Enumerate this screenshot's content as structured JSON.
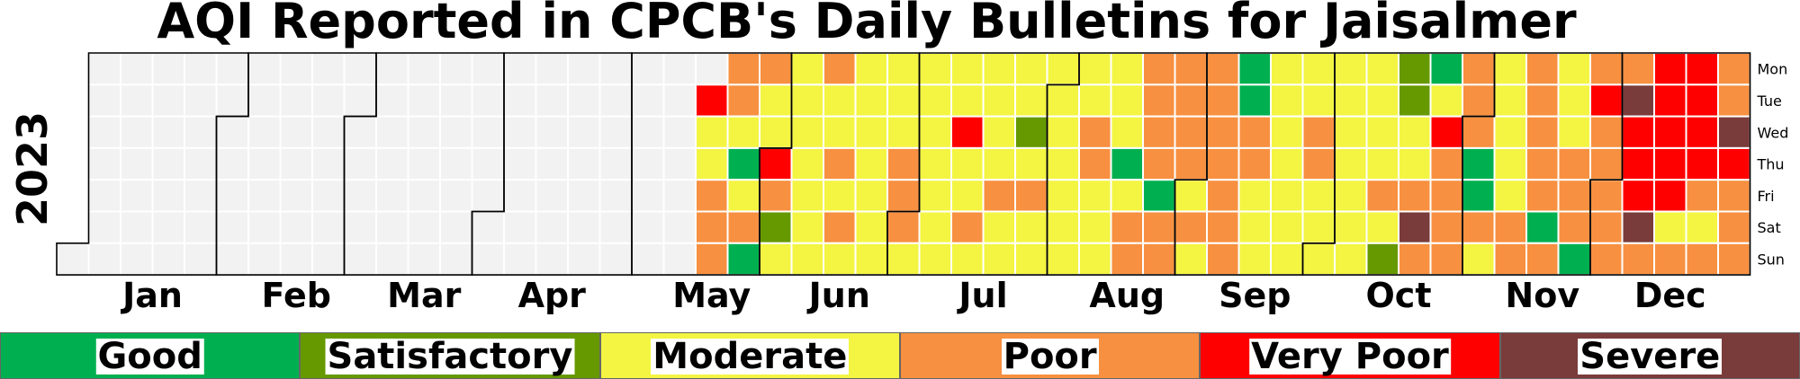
{
  "chart_data": {
    "type": "heatmap",
    "title": "AQI Reported in CPCB's Daily Bulletins for Jaisalmer",
    "year_label": "2023",
    "weekdays": [
      "Mon",
      "Tue",
      "Wed",
      "Thu",
      "Fri",
      "Sat",
      "Sun"
    ],
    "months": [
      "Jan",
      "Feb",
      "Mar",
      "Apr",
      "May",
      "Jun",
      "Jul",
      "Aug",
      "Sep",
      "Oct",
      "Nov",
      "Dec"
    ],
    "no_data_color": "#f2f2f2",
    "categories": [
      {
        "code": "G",
        "name": "Good",
        "color": "#00b050"
      },
      {
        "code": "S",
        "name": "Satisfactory",
        "color": "#669900"
      },
      {
        "code": "M",
        "name": "Moderate",
        "color": "#f3f542"
      },
      {
        "code": "P",
        "name": "Poor",
        "color": "#f79040"
      },
      {
        "code": "V",
        "name": "Very Poor",
        "color": "#ff0000"
      },
      {
        "code": "X",
        "name": "Severe",
        "color": "#7a3b3b"
      }
    ],
    "data_start_date": "2023-05-16",
    "daily_categories": [
      "VMMPPPPPMGMPGPMMVPSMMMMMMMMPMMPMPMMMMMMMMMMMPPPMMMMMMMMMMVMMPMMMMMPMMMMSMPMMMMMMMMMMMPPMMMMMMGMPPPPPPGPPPPPPMPMPPPPPPPGGPPMMMMMMMMMMMMPPMMMMMMMMMMMMMMPMSSSMMPXPGMVPPPPPPPGGPMMMMMMPPPPPPPGPMMMPPPGPVPPPPPPXVVVXPVVVVVMPVVVVPMPPPXVPPPPPPPPVPMPXVPVPVPPPVPVMP"
    ]
  }
}
